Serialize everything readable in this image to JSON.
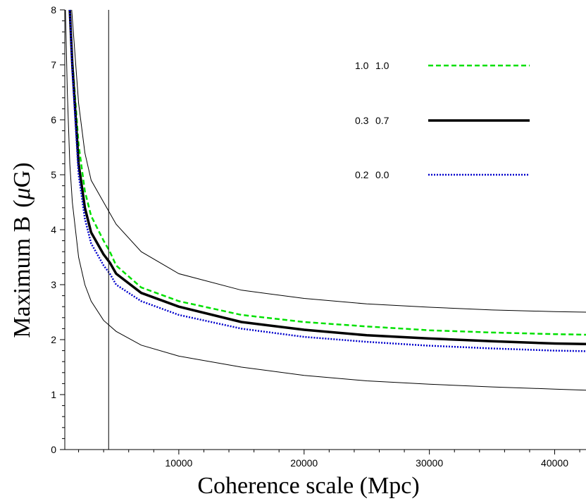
{
  "chart_data": {
    "type": "line",
    "title": "",
    "xlabel": "Coherence scale (Mpc)",
    "ylabel_main": "Maximum B",
    "ylabel_unit_symbol": "μ",
    "ylabel_unit_rest": "G",
    "xlim": [
      900,
      42500
    ],
    "ylim": [
      0,
      8
    ],
    "x_ticks": [
      10000,
      20000,
      30000,
      40000
    ],
    "y_ticks": [
      0,
      1,
      2,
      3,
      4,
      5,
      6,
      7,
      8
    ],
    "x_tick_labels": [
      "10000",
      "20000",
      "30000",
      "40000"
    ],
    "y_tick_labels": [
      "0",
      "1",
      "2",
      "3",
      "4",
      "5",
      "6",
      "7",
      "8"
    ],
    "grid": false,
    "legend_position": "top-right",
    "series": [
      {
        "name": "1.0  1.0",
        "label_a": "1.0",
        "label_b": "1.0",
        "color": "#00e000",
        "style": "dashed",
        "x": [
          1300,
          1500,
          2000,
          2500,
          3000,
          4000,
          4500,
          5000,
          7000,
          10000,
          15000,
          20000,
          25000,
          30000,
          35000,
          40000,
          42500
        ],
        "y": [
          8.0,
          7.1,
          5.55,
          4.7,
          4.25,
          3.8,
          3.6,
          3.35,
          2.95,
          2.7,
          2.45,
          2.32,
          2.24,
          2.17,
          2.13,
          2.1,
          2.09
        ]
      },
      {
        "name": "0.3  0.7",
        "label_a": "0.3",
        "label_b": "0.7",
        "color": "#000000",
        "style": "solid",
        "x": [
          1300,
          1500,
          2000,
          2500,
          3000,
          4000,
          4500,
          5000,
          7000,
          10000,
          15000,
          20000,
          25000,
          30000,
          35000,
          40000,
          42500
        ],
        "y": [
          8.0,
          7.0,
          5.2,
          4.4,
          3.95,
          3.55,
          3.4,
          3.2,
          2.85,
          2.6,
          2.32,
          2.18,
          2.08,
          2.02,
          1.97,
          1.93,
          1.92
        ]
      },
      {
        "name": "0.2  0.0",
        "label_a": "0.2",
        "label_b": "0.0",
        "color": "#0000cc",
        "style": "dotted",
        "x": [
          1300,
          1500,
          2000,
          2500,
          3000,
          4000,
          4500,
          5000,
          7000,
          10000,
          15000,
          20000,
          25000,
          30000,
          35000,
          40000,
          42500
        ],
        "y": [
          8.0,
          6.9,
          5.0,
          4.2,
          3.75,
          3.35,
          3.2,
          3.0,
          2.7,
          2.45,
          2.2,
          2.05,
          1.96,
          1.89,
          1.84,
          1.8,
          1.79
        ]
      }
    ],
    "bound_curves": [
      {
        "color": "#000000",
        "x": [
          1450,
          2000,
          2500,
          3000,
          4000,
          4500,
          5000,
          7000,
          10000,
          15000,
          20000,
          25000,
          30000,
          35000,
          40000,
          42500
        ],
        "y": [
          8.0,
          6.3,
          5.4,
          4.9,
          4.5,
          4.3,
          4.1,
          3.6,
          3.2,
          2.9,
          2.75,
          2.65,
          2.59,
          2.54,
          2.51,
          2.5
        ]
      },
      {
        "color": "#000000",
        "x": [
          950,
          1100,
          1300,
          1500,
          2000,
          2500,
          3000,
          4000,
          4500,
          5000,
          7000,
          10000,
          15000,
          20000,
          25000,
          30000,
          35000,
          40000,
          42500
        ],
        "y": [
          8.0,
          6.5,
          5.2,
          4.5,
          3.5,
          3.0,
          2.7,
          2.35,
          2.25,
          2.15,
          1.9,
          1.7,
          1.5,
          1.35,
          1.25,
          1.19,
          1.14,
          1.1,
          1.08
        ]
      }
    ],
    "reference_line_x": 4400
  }
}
